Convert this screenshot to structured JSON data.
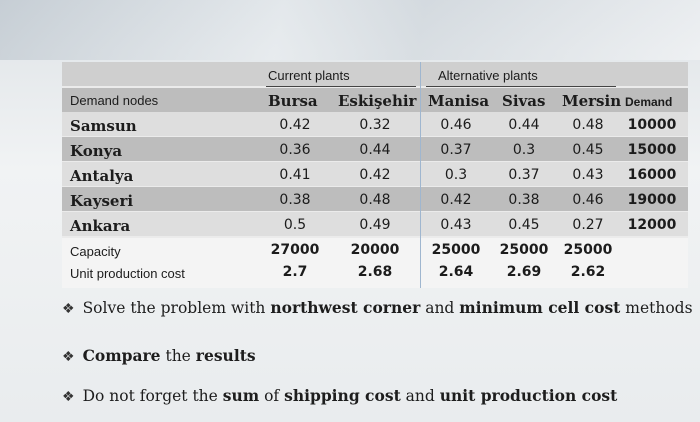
{
  "group_headers": {
    "current": "Current plants",
    "alternative": "Alternative plants"
  },
  "row_header_label": "Demand nodes",
  "plants": [
    "Bursa",
    "Eskişehir",
    "Manisa",
    "Sivas",
    "Mersin"
  ],
  "demand_header": "Demand",
  "rows": [
    {
      "node": "Samsun",
      "costs": [
        "0.42",
        "0.32",
        "0.46",
        "0.44",
        "0.48"
      ],
      "demand": "10000"
    },
    {
      "node": "Konya",
      "costs": [
        "0.36",
        "0.44",
        "0.37",
        "0.3",
        "0.45"
      ],
      "demand": "15000"
    },
    {
      "node": "Antalya",
      "costs": [
        "0.41",
        "0.42",
        "0.3",
        "0.37",
        "0.43"
      ],
      "demand": "16000"
    },
    {
      "node": "Kayseri",
      "costs": [
        "0.38",
        "0.48",
        "0.42",
        "0.38",
        "0.46"
      ],
      "demand": "19000"
    },
    {
      "node": "Ankara",
      "costs": [
        "0.5",
        "0.49",
        "0.43",
        "0.45",
        "0.27"
      ],
      "demand": "12000"
    }
  ],
  "capacity": {
    "label": "Capacity",
    "values": [
      "27000",
      "20000",
      "25000",
      "25000",
      "25000"
    ]
  },
  "unit_cost": {
    "label": "Unit production cost",
    "values": [
      "2.7",
      "2.68",
      "2.64",
      "2.69",
      "2.62"
    ]
  },
  "bullets": [
    {
      "parts": [
        {
          "t": "Solve the problem with ",
          "b": false
        },
        {
          "t": "northwest corner",
          "b": true
        },
        {
          "t": " and ",
          "b": false
        },
        {
          "t": "minimum cell cost",
          "b": true
        },
        {
          "t": " methods",
          "b": false
        }
      ]
    },
    {
      "parts": [
        {
          "t": "Compare",
          "b": true
        },
        {
          "t": " the ",
          "b": false
        },
        {
          "t": "results",
          "b": true
        }
      ]
    },
    {
      "parts": [
        {
          "t": "Do not forget the ",
          "b": false
        },
        {
          "t": "sum",
          "b": true
        },
        {
          "t": " of ",
          "b": false
        },
        {
          "t": "shipping cost",
          "b": true
        },
        {
          "t": " and ",
          "b": false
        },
        {
          "t": "unit production cost",
          "b": true
        }
      ]
    }
  ]
}
